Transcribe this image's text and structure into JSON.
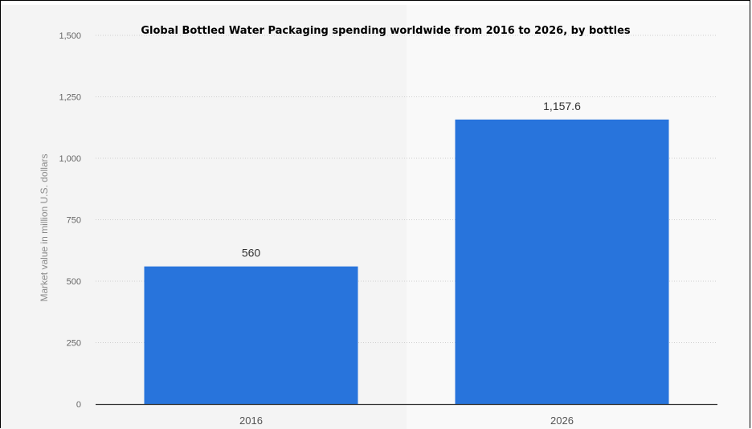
{
  "chart_data": {
    "type": "bar",
    "title": "Global Bottled Water Packaging spending worldwide from 2016 to 2026, by bottles",
    "xlabel": "",
    "ylabel": "Market value in million U.S. dollars",
    "categories": [
      "2016",
      "2026"
    ],
    "values": [
      560,
      1157.6
    ],
    "data_labels": [
      "560",
      "1,157.6"
    ],
    "ylim": [
      0,
      1500
    ],
    "yticks": [
      0,
      250,
      500,
      750,
      1000,
      1250,
      1500
    ],
    "ytick_labels": [
      "0",
      "250",
      "500",
      "750",
      "1,000",
      "1,250",
      "1,500"
    ],
    "grid": true,
    "bar_color": "#2874dc",
    "plot_background": "#f4f4f4",
    "alt_band_color": "#f9f9f9"
  }
}
